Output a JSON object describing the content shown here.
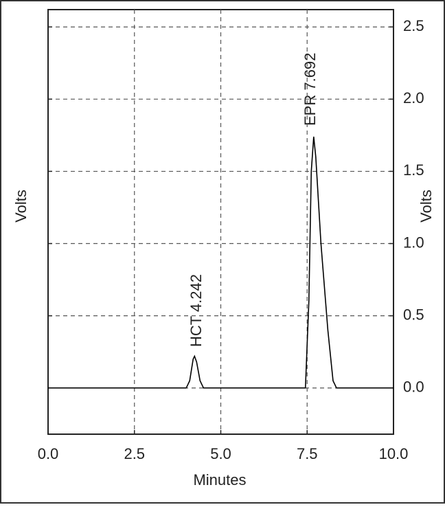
{
  "chart_data": {
    "type": "line",
    "x_label": "Minutes",
    "y_label": "Volts",
    "y2_label": "Volts",
    "annotations": [
      "HCT 4.242",
      "EPR 7.692"
    ],
    "x": [
      0,
      4.0,
      4.1,
      4.2,
      4.24,
      4.3,
      4.4,
      4.5,
      7.45,
      7.55,
      7.62,
      7.69,
      7.75,
      7.9,
      8.1,
      8.25,
      8.35,
      10
    ],
    "series": [
      {
        "color": "#000000",
        "values": [
          0,
          0,
          0.05,
          0.2,
          0.22,
          0.18,
          0.05,
          0,
          0,
          0.6,
          1.5,
          1.74,
          1.6,
          1.0,
          0.4,
          0.05,
          0,
          0
        ]
      }
    ],
    "xlim": [
      0,
      10
    ],
    "xticks": [
      {
        "value": 0,
        "label": "0.0"
      },
      {
        "value": 2.5,
        "label": "2.5"
      },
      {
        "value": 5,
        "label": "5.0"
      },
      {
        "value": 7.5,
        "label": "7.5"
      },
      {
        "value": 10,
        "label": "10.0"
      }
    ],
    "ylim": [
      -0.32,
      2.62
    ],
    "yticks": [
      {
        "value": 0,
        "label": "0.0"
      },
      {
        "value": 0.5,
        "label": "0.5"
      },
      {
        "value": 1,
        "label": "1.0"
      },
      {
        "value": 1.5,
        "label": "1.5"
      },
      {
        "value": 2,
        "label": "2.0"
      },
      {
        "value": 2.5,
        "label": "2.5"
      }
    ],
    "grid": true
  }
}
